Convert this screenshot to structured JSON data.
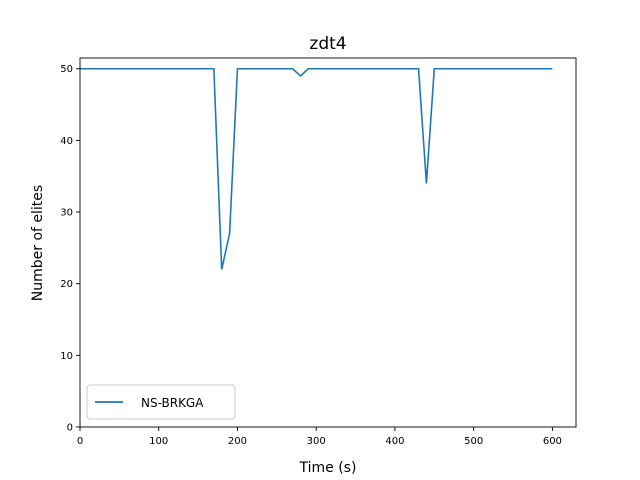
{
  "chart_data": {
    "type": "line",
    "title": "zdt4",
    "xlabel": "Time (s)",
    "ylabel": "Number of elites",
    "xlim": [
      0,
      630
    ],
    "ylim": [
      0,
      51.5
    ],
    "xticks": [
      0,
      100,
      200,
      300,
      400,
      500,
      600
    ],
    "yticks": [
      0,
      10,
      20,
      30,
      40,
      50
    ],
    "grid": false,
    "legend_position": "lower-left",
    "series": [
      {
        "name": "NS-BRKGA",
        "color": "#1f77b4",
        "x": [
          0,
          10,
          20,
          30,
          40,
          50,
          60,
          70,
          80,
          90,
          100,
          110,
          120,
          130,
          140,
          150,
          160,
          170,
          180,
          190,
          200,
          210,
          220,
          230,
          240,
          250,
          260,
          270,
          280,
          290,
          300,
          310,
          320,
          330,
          340,
          350,
          360,
          370,
          380,
          390,
          400,
          410,
          420,
          430,
          440,
          450,
          460,
          470,
          480,
          490,
          500,
          510,
          520,
          530,
          540,
          550,
          560,
          570,
          580,
          590,
          600
        ],
        "y": [
          50,
          50,
          50,
          50,
          50,
          50,
          50,
          50,
          50,
          50,
          50,
          50,
          50,
          50,
          50,
          50,
          50,
          50,
          22,
          27,
          50,
          50,
          50,
          50,
          50,
          50,
          50,
          50,
          49,
          50,
          50,
          50,
          50,
          50,
          50,
          50,
          50,
          50,
          50,
          50,
          50,
          50,
          50,
          50,
          34,
          50,
          50,
          50,
          50,
          50,
          50,
          50,
          50,
          50,
          50,
          50,
          50,
          50,
          50,
          50,
          50
        ]
      }
    ]
  }
}
